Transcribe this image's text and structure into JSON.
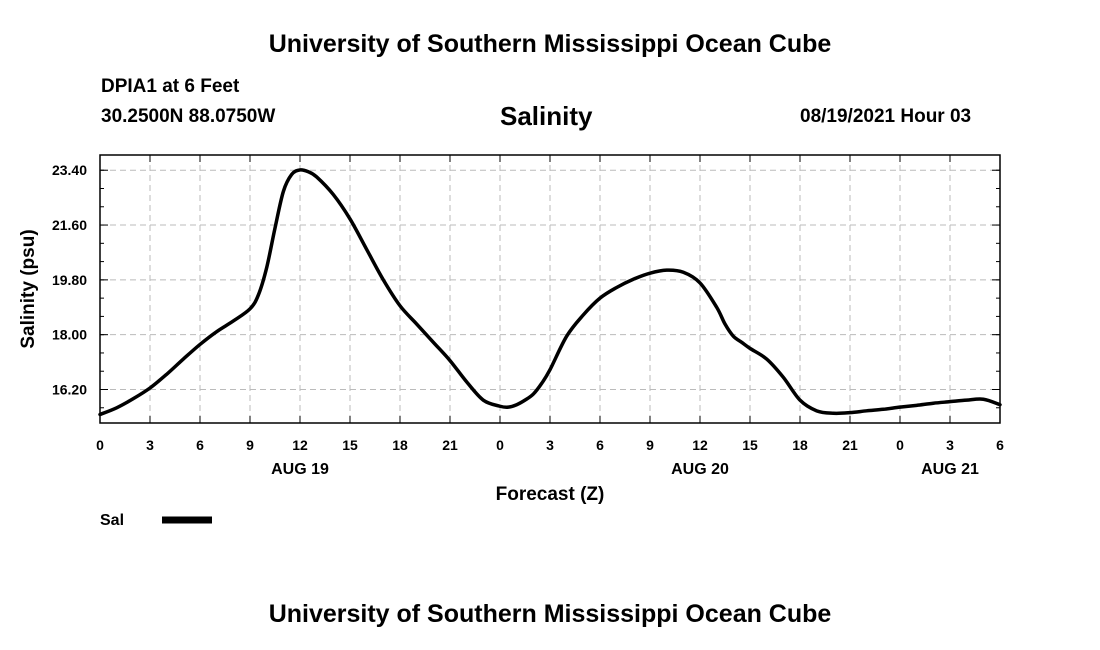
{
  "header": {
    "title": "University of Southern Mississippi Ocean Cube",
    "station": "DPIA1 at 6 Feet",
    "coords": "30.2500N  88.0750W",
    "datetime": "08/19/2021 Hour 03"
  },
  "footer": {
    "title": "University of Southern Mississippi Ocean Cube"
  },
  "chart_data": {
    "type": "line",
    "title": "Salinity",
    "xlabel": "Forecast (Z)",
    "ylabel": "Salinity (psu)",
    "xlim": [
      0,
      54
    ],
    "ylim": [
      15.1,
      23.9
    ],
    "grid": true,
    "yticks": [
      "16.20",
      "18.00",
      "19.80",
      "21.60",
      "23.40"
    ],
    "ytick_values": [
      16.2,
      18.0,
      19.8,
      21.6,
      23.4
    ],
    "xticks": [
      "0",
      "3",
      "6",
      "9",
      "12",
      "15",
      "18",
      "21",
      "0",
      "3",
      "6",
      "9",
      "12",
      "15",
      "18",
      "21",
      "0",
      "3",
      "6"
    ],
    "day_labels": [
      {
        "label": "AUG 19",
        "hour": 12
      },
      {
        "label": "AUG 20",
        "hour": 36
      },
      {
        "label": "AUG 21",
        "hour": 51
      }
    ],
    "legend": {
      "label": "Sal",
      "placement": "bottom-left"
    },
    "line_color": "#000000",
    "series": [
      {
        "name": "Sal",
        "x": [
          0,
          1,
          2,
          3,
          4,
          5,
          6,
          7,
          8,
          9,
          9.5,
          10,
          10.5,
          11,
          11.5,
          12,
          12.5,
          13,
          14,
          15,
          16,
          17,
          18,
          19,
          20,
          21,
          22,
          23,
          24,
          24.5,
          25,
          25.5,
          26,
          26.5,
          27,
          28,
          29,
          30,
          31,
          32,
          33,
          34,
          35,
          36,
          37,
          37.5,
          38,
          38.5,
          39,
          40,
          41,
          42,
          43,
          44,
          45,
          46,
          47,
          48,
          49,
          50,
          51,
          52,
          53,
          54
        ],
        "values": [
          15.38,
          15.6,
          15.9,
          16.25,
          16.7,
          17.2,
          17.68,
          18.1,
          18.45,
          18.85,
          19.3,
          20.2,
          21.5,
          22.7,
          23.26,
          23.41,
          23.35,
          23.18,
          22.6,
          21.8,
          20.8,
          19.8,
          18.95,
          18.35,
          17.75,
          17.15,
          16.45,
          15.85,
          15.65,
          15.62,
          15.7,
          15.85,
          16.05,
          16.4,
          16.85,
          17.95,
          18.65,
          19.2,
          19.55,
          19.82,
          20.02,
          20.12,
          20.05,
          19.7,
          18.9,
          18.35,
          17.95,
          17.75,
          17.55,
          17.2,
          16.6,
          15.85,
          15.5,
          15.42,
          15.44,
          15.5,
          15.55,
          15.62,
          15.68,
          15.75,
          15.8,
          15.85,
          15.88,
          15.7
        ]
      }
    ]
  }
}
